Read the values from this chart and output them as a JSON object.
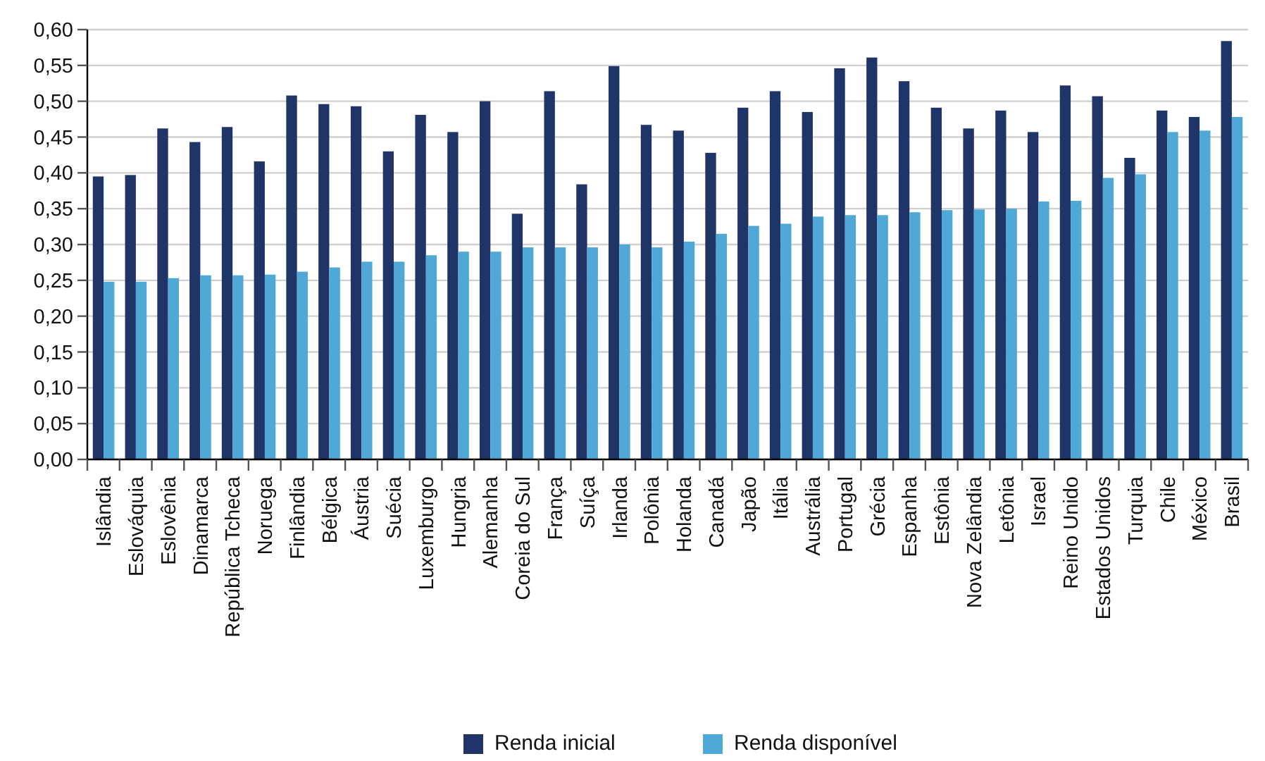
{
  "chart_data": {
    "type": "bar",
    "categories": [
      "Islândia",
      "Eslováquia",
      "Eslovênia",
      "Dinamarca",
      "República Tcheca",
      "Noruega",
      "Finlândia",
      "Bélgica",
      "Áustria",
      "Suécia",
      "Luxemburgo",
      "Hungria",
      "Alemanha",
      "Coreia do Sul",
      "França",
      "Suíça",
      "Irlanda",
      "Polônia",
      "Holanda",
      "Canadá",
      "Japão",
      "Itália",
      "Austrália",
      "Portugal",
      "Grécia",
      "Espanha",
      "Estônia",
      "Nova Zelândia",
      "Letônia",
      "Israel",
      "Reino Unido",
      "Estados Unidos",
      "Turquia",
      "Chile",
      "México",
      "Brasil"
    ],
    "series": [
      {
        "name": "Renda inicial",
        "color": "#1f3567",
        "values": [
          0.395,
          0.397,
          0.462,
          0.443,
          0.464,
          0.416,
          0.508,
          0.496,
          0.493,
          0.43,
          0.481,
          0.457,
          0.5,
          0.343,
          0.514,
          0.384,
          0.549,
          0.467,
          0.459,
          0.428,
          0.491,
          0.514,
          0.485,
          0.546,
          0.561,
          0.528,
          0.491,
          0.462,
          0.487,
          0.457,
          0.522,
          0.507,
          0.421,
          0.487,
          0.478,
          0.584
        ]
      },
      {
        "name": "Renda disponível",
        "color": "#4fa8d6",
        "values": [
          0.248,
          0.248,
          0.253,
          0.257,
          0.257,
          0.258,
          0.262,
          0.268,
          0.276,
          0.276,
          0.285,
          0.29,
          0.29,
          0.296,
          0.296,
          0.296,
          0.3,
          0.296,
          0.304,
          0.315,
          0.326,
          0.329,
          0.339,
          0.341,
          0.341,
          0.345,
          0.348,
          0.349,
          0.35,
          0.36,
          0.361,
          0.393,
          0.398,
          0.457,
          0.459,
          0.478
        ]
      }
    ],
    "ylim": [
      0,
      0.6
    ],
    "yticks": [
      {
        "value": 0,
        "label": "0,00"
      },
      {
        "value": 0.05,
        "label": "0,05"
      },
      {
        "value": 0.1,
        "label": "0,10"
      },
      {
        "value": 0.15,
        "label": "0,15"
      },
      {
        "value": 0.2,
        "label": "0,20"
      },
      {
        "value": 0.25,
        "label": "0,25"
      },
      {
        "value": 0.3,
        "label": "0,30"
      },
      {
        "value": 0.35,
        "label": "0,35"
      },
      {
        "value": 0.4,
        "label": "0,40"
      },
      {
        "value": 0.45,
        "label": "0,45"
      },
      {
        "value": 0.5,
        "label": "0,50"
      },
      {
        "value": 0.55,
        "label": "0,55"
      },
      {
        "value": 0.6,
        "label": "0,60"
      }
    ],
    "grid": "y",
    "legend": "bottom"
  }
}
